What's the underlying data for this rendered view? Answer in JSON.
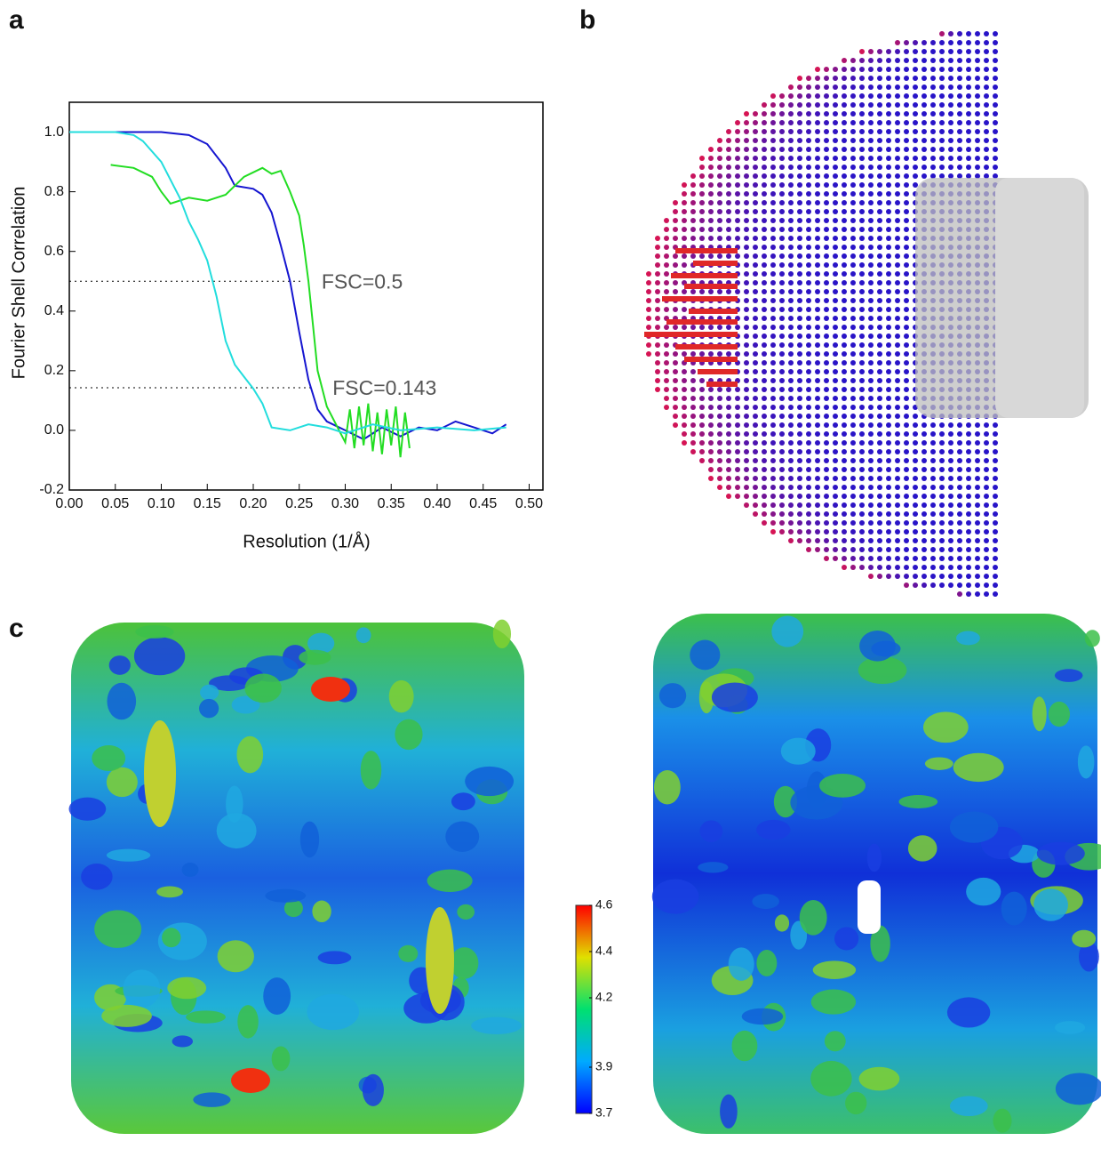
{
  "panel_labels": [
    "a",
    "b",
    "c"
  ],
  "chart_data": {
    "type": "line",
    "ylabel": "Fourier Shell Correlation",
    "xlabel": "Resolution (1/Å)",
    "xlim": [
      0,
      0.515
    ],
    "ylim": [
      -0.2,
      1.1
    ],
    "xticks": [
      {
        "value": 0,
        "label": "0.00"
      },
      0.05,
      {
        "value": 0.1,
        "label": "0.10"
      },
      0.15,
      {
        "value": 0.2,
        "label": "0.20"
      },
      0.25,
      {
        "value": 0.3,
        "label": "0.30"
      },
      0.35,
      {
        "value": 0.4,
        "label": "0.40"
      },
      0.45,
      {
        "value": 0.5,
        "label": "0.50"
      }
    ],
    "yticks": [
      -0.2,
      {
        "value": 0,
        "label": "0.0"
      },
      0.2,
      0.4,
      0.6,
      0.8,
      {
        "value": 1,
        "label": "1.0"
      }
    ],
    "series": [
      {
        "color": "#1515d0",
        "x": [
          0,
          0.05,
          0.1,
          0.13,
          0.15,
          0.17,
          0.18,
          0.2,
          0.21,
          0.22,
          0.23,
          0.24,
          0.25,
          0.26,
          0.27,
          0.28,
          0.3,
          0.32,
          0.34,
          0.36,
          0.38,
          0.4,
          0.42,
          0.44,
          0.46,
          0.475
        ],
        "values": [
          1.0,
          1.0,
          1.0,
          0.99,
          0.96,
          0.88,
          0.82,
          0.81,
          0.79,
          0.73,
          0.62,
          0.5,
          0.33,
          0.17,
          0.07,
          0.03,
          0.0,
          -0.03,
          0.01,
          -0.02,
          0.01,
          0.0,
          0.03,
          0.01,
          -0.01,
          0.02
        ]
      },
      {
        "color": "#22dd22",
        "x": [
          0.045,
          0.07,
          0.09,
          0.1,
          0.11,
          0.13,
          0.15,
          0.17,
          0.19,
          0.21,
          0.22,
          0.23,
          0.24,
          0.25,
          0.255,
          0.26,
          0.265,
          0.27,
          0.28,
          0.29,
          0.3,
          0.305,
          0.31,
          0.315,
          0.32,
          0.325,
          0.33,
          0.335,
          0.34,
          0.345,
          0.35,
          0.355,
          0.36,
          0.365,
          0.37
        ],
        "values": [
          0.89,
          0.88,
          0.85,
          0.8,
          0.76,
          0.78,
          0.77,
          0.79,
          0.85,
          0.88,
          0.86,
          0.87,
          0.8,
          0.72,
          0.62,
          0.5,
          0.35,
          0.2,
          0.08,
          0.02,
          -0.04,
          0.07,
          -0.06,
          0.08,
          -0.05,
          0.09,
          -0.07,
          0.06,
          -0.08,
          0.07,
          -0.05,
          0.08,
          -0.09,
          0.06,
          -0.06
        ]
      },
      {
        "color": "#22dddd",
        "x": [
          0,
          0.05,
          0.07,
          0.08,
          0.1,
          0.12,
          0.13,
          0.14,
          0.15,
          0.16,
          0.17,
          0.18,
          0.19,
          0.2,
          0.21,
          0.22,
          0.24,
          0.26,
          0.28,
          0.3,
          0.33,
          0.36,
          0.4,
          0.44,
          0.475
        ],
        "values": [
          1.0,
          1.0,
          0.99,
          0.97,
          0.9,
          0.78,
          0.7,
          0.64,
          0.57,
          0.45,
          0.3,
          0.22,
          0.18,
          0.14,
          0.09,
          0.01,
          0.0,
          0.02,
          0.01,
          -0.01,
          0.02,
          0.0,
          0.01,
          0.0,
          0.01
        ]
      }
    ],
    "thresholds": [
      {
        "value": 0.5,
        "label": "FSC=0.5",
        "x_end": 0.253
      },
      {
        "value": 0.143,
        "label": "FSC=0.143",
        "x_end": 0.265
      }
    ]
  },
  "colorbar": {
    "lim": [
      3.7,
      4.6
    ],
    "ticks": [
      4.6,
      4.4,
      4.2,
      3.9,
      3.7
    ]
  }
}
